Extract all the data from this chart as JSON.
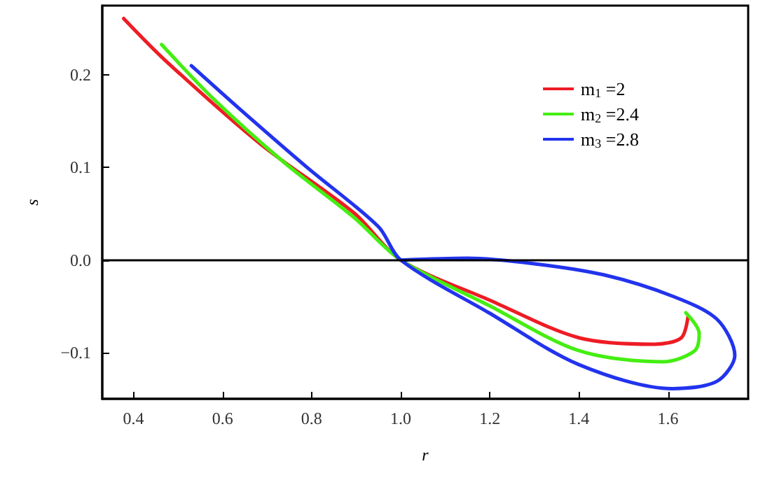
{
  "chart_data": {
    "type": "line",
    "xlabel": "r",
    "ylabel": "s",
    "xlim": [
      0.33,
      1.78
    ],
    "ylim": [
      -0.15,
      0.275
    ],
    "xticks": [
      {
        "value": 0.4,
        "label": "0.4"
      },
      {
        "value": 0.6,
        "label": "0.6"
      },
      {
        "value": 0.8,
        "label": "0.8"
      },
      {
        "value": 1.0,
        "label": "1.0"
      },
      {
        "value": 1.2,
        "label": "1.2"
      },
      {
        "value": 1.4,
        "label": "1.4"
      },
      {
        "value": 1.6,
        "label": "1.6"
      }
    ],
    "yticks": [
      {
        "value": -0.1,
        "label": "−0.1"
      },
      {
        "value": 0,
        "label": "0.0"
      },
      {
        "value": 0.1,
        "label": "0.1"
      },
      {
        "value": 0.2,
        "label": "0.2"
      }
    ],
    "grid": false,
    "legend": "top right",
    "marker": "none",
    "line_style": "solid",
    "ref_lines": [
      {
        "axis": "y",
        "value": 0,
        "color": "#000000"
      }
    ],
    "series": [
      {
        "name": "m$_{1}$ =2",
        "color": "#ee1c24",
        "x": [
          0.378,
          0.473,
          0.686,
          0.895,
          1.0,
          1.198,
          1.4,
          1.57,
          1.63,
          1.645
        ],
        "values": [
          0.261,
          0.215,
          0.125,
          0.051,
          0,
          -0.043,
          -0.084,
          -0.091,
          -0.084,
          -0.061
        ]
      },
      {
        "name": "m$_{2}$ =2.4",
        "color": "#44ee11",
        "x": [
          0.463,
          0.578,
          0.737,
          0.895,
          1.0,
          1.198,
          1.4,
          1.59,
          1.66,
          1.67,
          1.64
        ],
        "values": [
          0.233,
          0.175,
          0.106,
          0.046,
          0,
          -0.049,
          -0.098,
          -0.11,
          -0.098,
          -0.079,
          -0.057
        ]
      },
      {
        "name": "m$_{3}$ =2.8",
        "color": "#2233ee",
        "x": [
          0.53,
          0.632,
          0.79,
          0.95,
          1.0,
          1.198,
          1.4,
          1.61,
          1.71,
          1.75,
          1.71,
          1.61,
          1.456,
          1.3,
          1.15,
          1.0
        ],
        "values": [
          0.21,
          0.166,
          0.1,
          0.036,
          0,
          -0.057,
          -0.113,
          -0.139,
          -0.131,
          -0.103,
          -0.064,
          -0.039,
          -0.016,
          -0.004,
          0.002,
          0
        ]
      }
    ]
  }
}
